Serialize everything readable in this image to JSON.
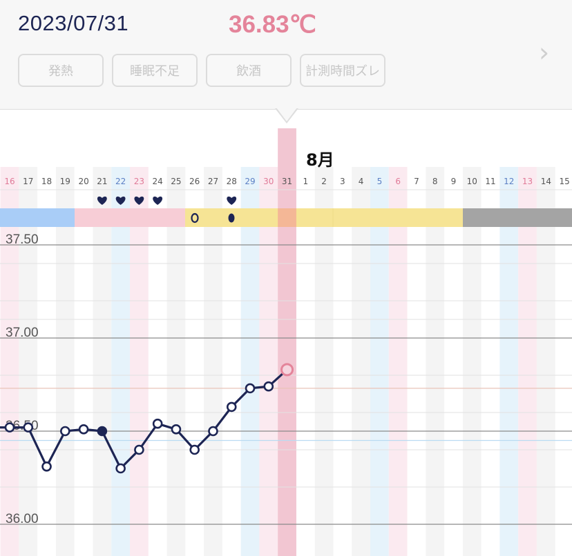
{
  "header": {
    "date": "2023/07/31",
    "temperature": "36.83℃",
    "tags": [
      "発熱",
      "睡眠不足",
      "飲酒",
      "計測時間ズレ"
    ],
    "next_icon": "chevron-right-icon"
  },
  "chart": {
    "month_label": "8月",
    "day_labels": [
      "16",
      "17",
      "18",
      "19",
      "20",
      "21",
      "22",
      "23",
      "24",
      "25",
      "26",
      "27",
      "28",
      "29",
      "30",
      "31",
      "1",
      "2",
      "3",
      "4",
      "5",
      "6",
      "7",
      "8",
      "9",
      "10",
      "11",
      "12",
      "13",
      "14",
      "15"
    ],
    "selected_day": "31",
    "colors": {
      "weekday": "#555555",
      "saturday": "#5b7fc4",
      "sunday": "#e07a98",
      "line": "#1d2554",
      "selected_point": "#e4849a",
      "phase_blue": "#a9cdf7",
      "phase_pink": "#f7cdd6",
      "phase_yellow": "#f6e495",
      "phase_gray": "#a4a4a4"
    }
  },
  "chart_data": {
    "type": "line",
    "x": [
      "7/16",
      "7/17",
      "7/18",
      "7/19",
      "7/20",
      "7/21",
      "7/22",
      "7/23",
      "7/24",
      "7/25",
      "7/26",
      "7/27",
      "7/28",
      "7/29",
      "7/30",
      "7/31"
    ],
    "series": [
      {
        "values": [
          36.52,
          36.52,
          36.31,
          36.5,
          36.51,
          36.5,
          36.3,
          36.4,
          36.54,
          36.51,
          36.4,
          36.5,
          36.63,
          36.73,
          36.74,
          36.83
        ]
      }
    ],
    "filled_points": [
      "7/21"
    ],
    "yticks": [
      "37.50",
      "37.00",
      "36.50",
      "36.00"
    ],
    "ylim": [
      35.97,
      37.67
    ],
    "heart_days": [
      "21",
      "22",
      "23",
      "24",
      "28"
    ],
    "phases": [
      "blue",
      "pink",
      "yellow",
      "yellow",
      "gray"
    ]
  }
}
